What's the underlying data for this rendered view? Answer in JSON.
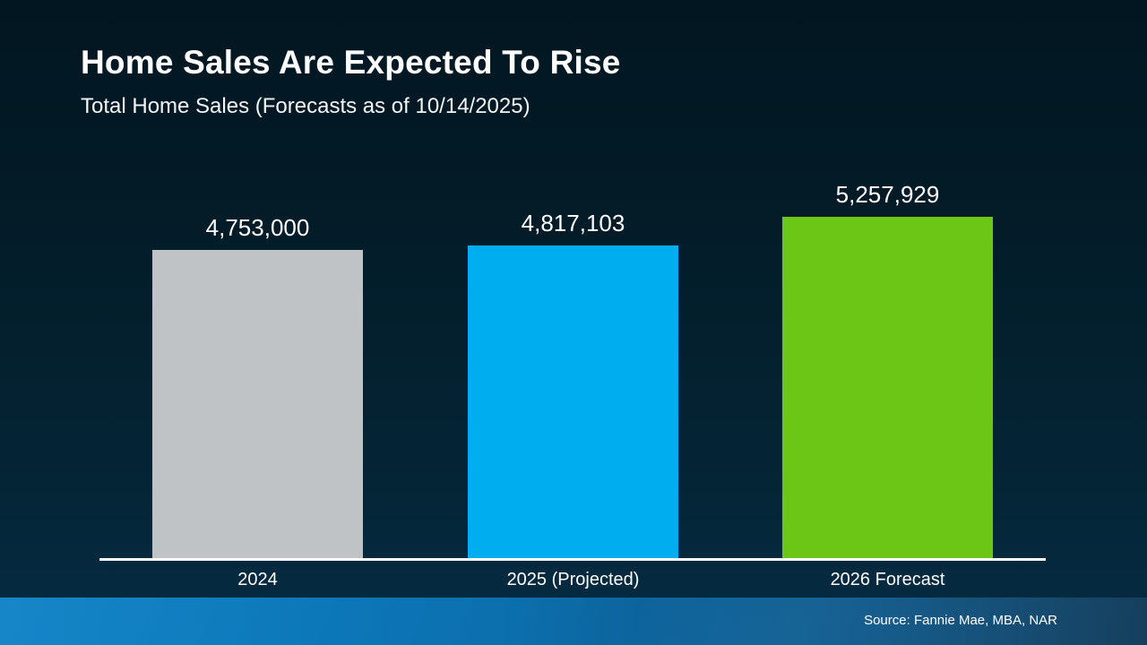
{
  "header": {
    "title": "Home Sales Are Expected To Rise",
    "subtitle": "Total Home Sales (Forecasts as of 10/14/2025)"
  },
  "chart_data": {
    "type": "bar",
    "title": "Home Sales Are Expected To Rise",
    "subtitle": "Total Home Sales (Forecasts as of 10/14/2025)",
    "categories": [
      "2024",
      "2025 (Projected)",
      "2026 Forecast"
    ],
    "values": [
      4753000,
      4817103,
      5257929
    ],
    "value_labels": [
      "4,753,000",
      "4,817,103",
      "5,257,929"
    ],
    "bar_colors": [
      "#bfc3c5",
      "#00aeef",
      "#6cc616"
    ],
    "xlabel": "",
    "ylabel": "",
    "ylim": [
      0,
      5257929
    ],
    "grid": false,
    "legend": false,
    "value_labels_position": "above-bars",
    "axis_line_color": "#ffffff"
  },
  "footer": {
    "source": "Source: Fannie Mae, MBA, NAR"
  },
  "colors": {
    "background_top": "#021621",
    "background_bottom": "#052a40",
    "footer_left": "#0a80c5",
    "footer_right": "#163f5d",
    "text": "#ffffff"
  }
}
